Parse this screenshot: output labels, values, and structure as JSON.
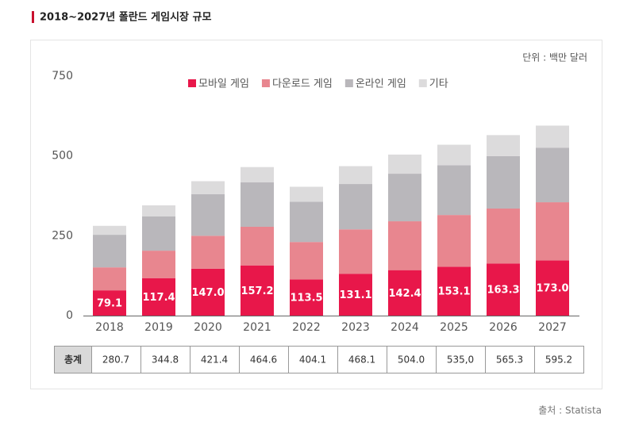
{
  "chart_data": {
    "type": "stacked_bar",
    "title": "2018~2027년 폴란드 게임시장 규모",
    "unit": "단위 : 백만 달러",
    "source": "출처 : Statista",
    "categories": [
      "2018",
      "2019",
      "2020",
      "2021",
      "2022",
      "2023",
      "2024",
      "2025",
      "2026",
      "2027"
    ],
    "series": [
      {
        "name": "모바일 게임",
        "color": "#e8174a",
        "values": [
          79.1,
          117.4,
          147.0,
          157.2,
          113.5,
          131.1,
          142.4,
          153.1,
          163.3,
          173.0
        ],
        "value_labels": [
          "79.1",
          "117.4",
          "147.0",
          "157.2",
          "113.5",
          "131.1",
          "142.4",
          "153.1",
          "163.3",
          "173.0"
        ]
      },
      {
        "name": "다운로드 게임",
        "color": "#e8868f",
        "values": [
          72,
          86,
          103,
          121,
          117,
          139,
          153,
          162,
          172,
          182
        ]
      },
      {
        "name": "온라인 게임",
        "color": "#b9b7bb",
        "values": [
          102,
          107,
          130,
          139,
          126,
          142,
          149,
          156,
          164,
          171
        ]
      },
      {
        "name": "기타",
        "color": "#dcdbdc",
        "values": [
          28,
          35,
          41,
          48,
          47,
          56,
          60,
          64,
          66,
          69
        ]
      }
    ],
    "ylim": [
      0,
      750
    ],
    "yticks": [
      0,
      250,
      500,
      750
    ],
    "grid": false,
    "total_label": "총계",
    "totals": [
      "280.7",
      "344.8",
      "421.4",
      "464.6",
      "404.1",
      "468.1",
      "504.0",
      "535,0",
      "565.3",
      "595.2"
    ]
  }
}
